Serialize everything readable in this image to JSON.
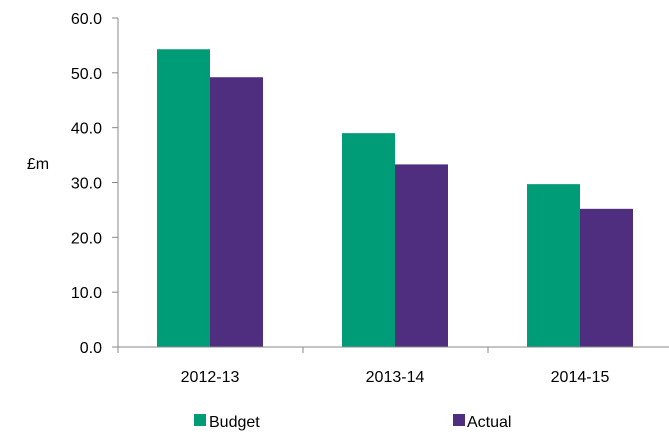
{
  "chart_data": {
    "type": "bar",
    "title": "",
    "xlabel": "",
    "ylabel": "£m",
    "ylim": [
      0,
      60
    ],
    "yticks": [
      "0.0",
      "10.0",
      "20.0",
      "30.0",
      "40.0",
      "50.0",
      "60.0"
    ],
    "categories": [
      "2012-13",
      "2013-14",
      "2014-15"
    ],
    "series": [
      {
        "name": "Budget",
        "color": "#009B77",
        "values": [
          54.3,
          39.0,
          29.7
        ]
      },
      {
        "name": "Actual",
        "color": "#4F2D7F",
        "values": [
          49.2,
          33.3,
          25.2
        ]
      }
    ],
    "grid": false,
    "legend": "bottom"
  }
}
